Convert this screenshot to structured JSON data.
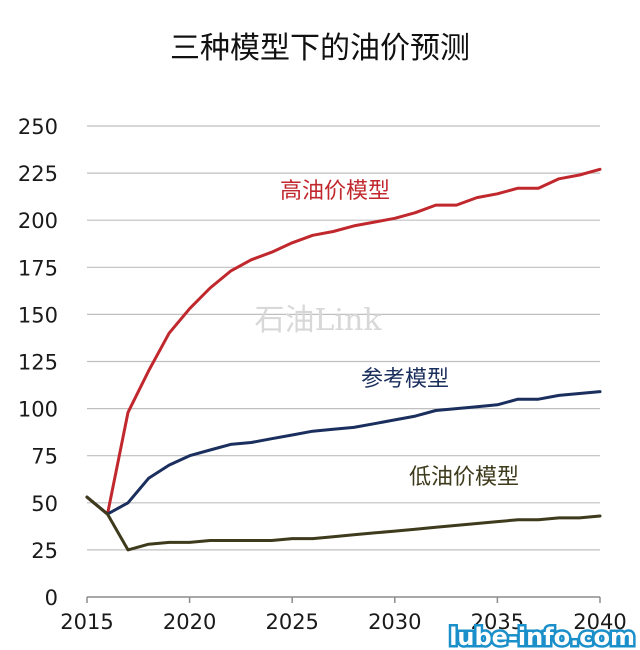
{
  "chart_data": {
    "type": "line",
    "title": "三种模型下的油价预测",
    "x_ticks": [
      2015,
      2020,
      2025,
      2030,
      2035,
      2040
    ],
    "y_ticks": [
      0,
      25,
      50,
      75,
      100,
      125,
      150,
      175,
      200,
      225,
      250
    ],
    "xlim": [
      2015,
      2040
    ],
    "ylim": [
      0,
      250
    ],
    "grid": "horizontal",
    "series": [
      {
        "name": "高油价模型",
        "color": "#c0282d",
        "x": [
          2015,
          2016,
          2017,
          2018,
          2019,
          2020,
          2021,
          2022,
          2023,
          2024,
          2025,
          2026,
          2027,
          2028,
          2029,
          2030,
          2031,
          2032,
          2033,
          2034,
          2035,
          2036,
          2037,
          2038,
          2039,
          2040
        ],
        "values": [
          53,
          44,
          98,
          120,
          140,
          153,
          164,
          173,
          179,
          183,
          188,
          192,
          194,
          197,
          199,
          201,
          204,
          208,
          208,
          212,
          214,
          217,
          217,
          222,
          224,
          227
        ]
      },
      {
        "name": "参考模型",
        "color": "#1b2f5e",
        "x": [
          2015,
          2016,
          2017,
          2018,
          2019,
          2020,
          2021,
          2022,
          2023,
          2024,
          2025,
          2026,
          2027,
          2028,
          2029,
          2030,
          2031,
          2032,
          2033,
          2034,
          2035,
          2036,
          2037,
          2038,
          2039,
          2040
        ],
        "values": [
          53,
          44,
          50,
          63,
          70,
          75,
          78,
          81,
          82,
          84,
          86,
          88,
          89,
          90,
          92,
          94,
          96,
          99,
          100,
          101,
          102,
          105,
          105,
          107,
          108,
          109
        ]
      },
      {
        "name": "低油价模型",
        "color": "#3e3a1c",
        "x": [
          2015,
          2016,
          2017,
          2018,
          2019,
          2020,
          2021,
          2022,
          2023,
          2024,
          2025,
          2026,
          2027,
          2028,
          2029,
          2030,
          2031,
          2032,
          2033,
          2034,
          2035,
          2036,
          2037,
          2038,
          2039,
          2040
        ],
        "values": [
          53,
          44,
          25,
          28,
          29,
          29,
          30,
          30,
          30,
          30,
          31,
          31,
          32,
          33,
          34,
          35,
          36,
          37,
          38,
          39,
          40,
          41,
          41,
          42,
          42,
          43
        ]
      }
    ]
  },
  "watermarks": {
    "center": "石油Link",
    "corner": "lube-info.com"
  }
}
